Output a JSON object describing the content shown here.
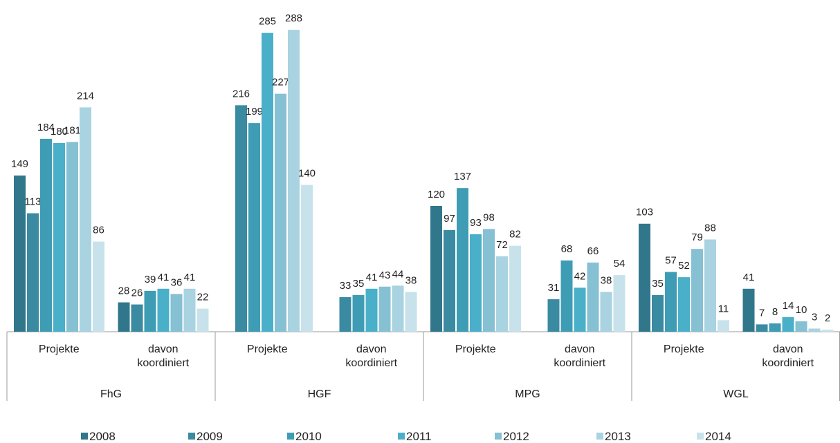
{
  "chart_data": {
    "type": "bar",
    "categories": [
      "Projekte",
      "davon koordiniert",
      "Projekte",
      "davon koordiniert",
      "Projekte",
      "davon koordiniert",
      "Projekte",
      "davon koordiniert"
    ],
    "groups": [
      "FhG",
      "HGF",
      "MPG",
      "WGL"
    ],
    "series": [
      {
        "name": "2008",
        "color": "#31778c",
        "values": [
          149,
          28,
          null,
          null,
          120,
          null,
          103,
          41
        ]
      },
      {
        "name": "2009",
        "color": "#3a8aa1",
        "values": [
          113,
          26,
          216,
          33,
          97,
          31,
          35,
          7
        ]
      },
      {
        "name": "2010",
        "color": "#3e9cb4",
        "values": [
          184,
          39,
          199,
          35,
          137,
          68,
          57,
          8
        ]
      },
      {
        "name": "2011",
        "color": "#4aafc8",
        "values": [
          180,
          41,
          285,
          41,
          93,
          42,
          52,
          14
        ]
      },
      {
        "name": "2012",
        "color": "#86c0d3",
        "values": [
          181,
          36,
          227,
          43,
          98,
          66,
          79,
          10
        ]
      },
      {
        "name": "2013",
        "color": "#a9d3e0",
        "values": [
          214,
          41,
          288,
          44,
          72,
          38,
          88,
          3
        ]
      },
      {
        "name": "2014",
        "color": "#c8e2eb",
        "values": [
          86,
          22,
          140,
          38,
          82,
          54,
          11,
          2
        ]
      }
    ]
  }
}
